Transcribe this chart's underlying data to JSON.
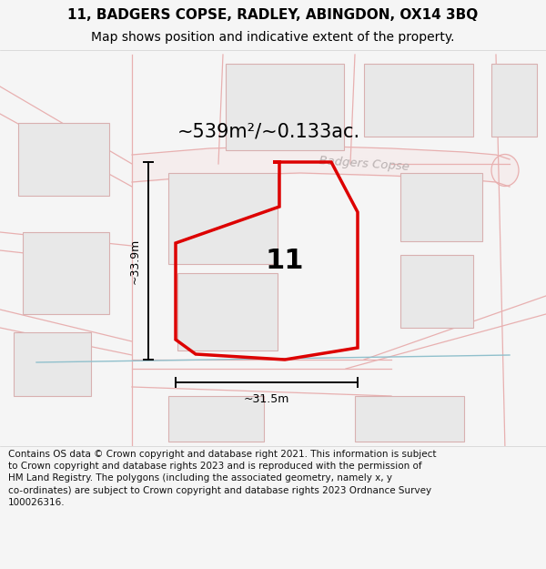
{
  "title_line1": "11, BADGERS COPSE, RADLEY, ABINGDON, OX14 3BQ",
  "title_line2": "Map shows position and indicative extent of the property.",
  "area_text": "~539m²/~0.133ac.",
  "road_name": "Badgers Copse",
  "label_number": "11",
  "dim_width": "~31.5m",
  "dim_height": "~33.9m",
  "footer_text": "Contains OS data © Crown copyright and database right 2021. This information is subject to Crown copyright and database rights 2023 and is reproduced with the permission of HM Land Registry. The polygons (including the associated geometry, namely x, y co-ordinates) are subject to Crown copyright and database rights 2023 Ordnance Survey 100026316.",
  "bg_color": "#f5f5f5",
  "map_bg": "#ffffff",
  "road_fill": "#f5eded",
  "building_fill": "#e8e8e8",
  "building_stroke": "#d8b0b0",
  "road_stroke": "#e8b0b0",
  "plot_stroke": "#dd0000",
  "dim_color": "#000000",
  "title_color": "#000000",
  "footer_color": "#111111",
  "road_name_color": "#b8b0b0",
  "blue_line_color": "#90c0cc",
  "title_fontsize": 11,
  "subtitle_fontsize": 10,
  "area_fontsize": 15,
  "number_fontsize": 22,
  "dim_fontsize": 9,
  "footer_fontsize": 7.5
}
